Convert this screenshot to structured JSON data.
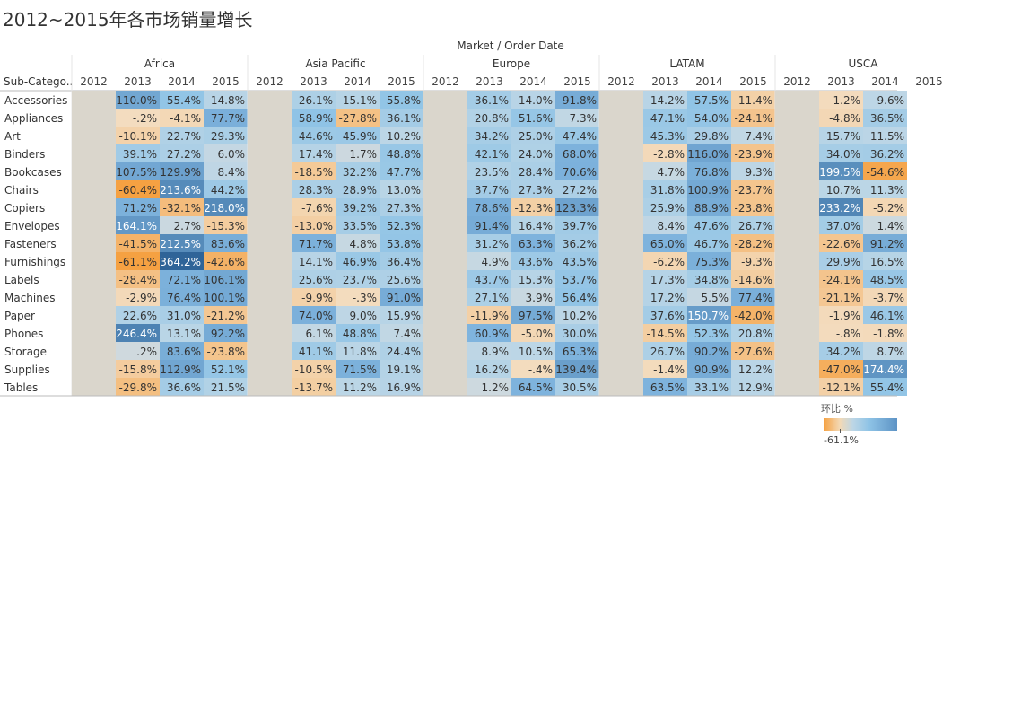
{
  "title": "2012~2015年各市场销量增长",
  "header": {
    "columns_title": "Market / Order Date",
    "row_title": "Sub-Catego.."
  },
  "legend": {
    "title": "环比 %",
    "min_label": "-61.1%"
  },
  "colors": {
    "neg": "#f5a142",
    "neutral": "#dad6cc",
    "pos_light": "#bcd6e6",
    "pos_mid": "#8ec3e6",
    "pos_dark": "#2f6498",
    "blank": "#dad6cc"
  },
  "chart_data": {
    "type": "heatmap",
    "measure": "环比 %",
    "column_header": "Market / Order Date",
    "markets": [
      "Africa",
      "Asia Pacific",
      "Europe",
      "LATAM",
      "USCA"
    ],
    "years": [
      "2012",
      "2013",
      "2014",
      "2015"
    ],
    "rows": [
      "Accessories",
      "Appliances",
      "Art",
      "Binders",
      "Bookcases",
      "Chairs",
      "Copiers",
      "Envelopes",
      "Fasteners",
      "Furnishings",
      "Labels",
      "Machines",
      "Paper",
      "Phones",
      "Storage",
      "Supplies",
      "Tables"
    ],
    "values": {
      "Africa": [
        [
          null,
          "110.0%",
          "55.4%",
          "14.8%"
        ],
        [
          null,
          "-.2%",
          "-4.1%",
          "77.7%"
        ],
        [
          null,
          "-10.1%",
          "22.7%",
          "29.3%"
        ],
        [
          null,
          "39.1%",
          "27.2%",
          "6.0%"
        ],
        [
          null,
          "107.5%",
          "129.9%",
          "8.4%"
        ],
        [
          null,
          "-60.4%",
          "213.6%",
          "44.2%"
        ],
        [
          null,
          "71.2%",
          "-32.1%",
          "218.0%"
        ],
        [
          null,
          "164.1%",
          "2.7%",
          "-15.3%"
        ],
        [
          null,
          "-41.5%",
          "212.5%",
          "83.6%"
        ],
        [
          null,
          "-61.1%",
          "364.2%",
          "-42.6%"
        ],
        [
          null,
          "-28.4%",
          "72.1%",
          "106.1%"
        ],
        [
          null,
          "-2.9%",
          "76.4%",
          "100.1%"
        ],
        [
          null,
          "22.6%",
          "31.0%",
          "-21.2%"
        ],
        [
          null,
          "246.4%",
          "13.1%",
          "92.2%"
        ],
        [
          null,
          ".2%",
          "83.6%",
          "-23.8%"
        ],
        [
          null,
          "-15.8%",
          "112.9%",
          "52.1%"
        ],
        [
          null,
          "-29.8%",
          "36.6%",
          "21.5%"
        ]
      ],
      "Asia Pacific": [
        [
          null,
          "26.1%",
          "15.1%",
          "55.8%"
        ],
        [
          null,
          "58.9%",
          "-27.8%",
          "36.1%"
        ],
        [
          null,
          "44.6%",
          "45.9%",
          "10.2%"
        ],
        [
          null,
          "17.4%",
          "1.7%",
          "48.8%"
        ],
        [
          null,
          "-18.5%",
          "32.2%",
          "47.7%"
        ],
        [
          null,
          "28.3%",
          "28.9%",
          "13.0%"
        ],
        [
          null,
          "-7.6%",
          "39.2%",
          "27.3%"
        ],
        [
          null,
          "-13.0%",
          "33.5%",
          "52.3%"
        ],
        [
          null,
          "71.7%",
          "4.8%",
          "53.8%"
        ],
        [
          null,
          "14.1%",
          "46.9%",
          "36.4%"
        ],
        [
          null,
          "25.6%",
          "23.7%",
          "25.6%"
        ],
        [
          null,
          "-9.9%",
          "-.3%",
          "91.0%"
        ],
        [
          null,
          "74.0%",
          "9.0%",
          "15.9%"
        ],
        [
          null,
          "6.1%",
          "48.8%",
          "7.4%"
        ],
        [
          null,
          "41.1%",
          "11.8%",
          "24.4%"
        ],
        [
          null,
          "-10.5%",
          "71.5%",
          "19.1%"
        ],
        [
          null,
          "-13.7%",
          "11.2%",
          "16.9%"
        ]
      ],
      "Europe": [
        [
          null,
          "36.1%",
          "14.0%",
          "91.8%"
        ],
        [
          null,
          "20.8%",
          "51.6%",
          "7.3%"
        ],
        [
          null,
          "34.2%",
          "25.0%",
          "47.4%"
        ],
        [
          null,
          "42.1%",
          "24.0%",
          "68.0%"
        ],
        [
          null,
          "23.5%",
          "28.4%",
          "70.6%"
        ],
        [
          null,
          "37.7%",
          "27.3%",
          "27.2%"
        ],
        [
          null,
          "78.6%",
          "-12.3%",
          "123.3%"
        ],
        [
          null,
          "91.4%",
          "16.4%",
          "39.7%"
        ],
        [
          null,
          "31.2%",
          "63.3%",
          "36.2%"
        ],
        [
          null,
          "4.9%",
          "43.6%",
          "43.5%"
        ],
        [
          null,
          "43.7%",
          "15.3%",
          "53.7%"
        ],
        [
          null,
          "27.1%",
          "3.9%",
          "56.4%"
        ],
        [
          null,
          "-11.9%",
          "97.5%",
          "10.2%"
        ],
        [
          null,
          "60.9%",
          "-5.0%",
          "30.0%"
        ],
        [
          null,
          "8.9%",
          "10.5%",
          "65.3%"
        ],
        [
          null,
          "16.2%",
          "-.4%",
          "139.4%"
        ],
        [
          null,
          "1.2%",
          "64.5%",
          "30.5%"
        ]
      ],
      "LATAM": [
        [
          null,
          "14.2%",
          "57.5%",
          "-11.4%"
        ],
        [
          null,
          "47.1%",
          "54.0%",
          "-24.1%"
        ],
        [
          null,
          "45.3%",
          "29.8%",
          "7.4%"
        ],
        [
          null,
          "-2.8%",
          "116.0%",
          "-23.9%"
        ],
        [
          null,
          "4.7%",
          "76.8%",
          "9.3%"
        ],
        [
          null,
          "31.8%",
          "100.9%",
          "-23.7%"
        ],
        [
          null,
          "25.9%",
          "88.9%",
          "-23.8%"
        ],
        [
          null,
          "8.4%",
          "47.6%",
          "26.7%"
        ],
        [
          null,
          "65.0%",
          "46.7%",
          "-28.2%"
        ],
        [
          null,
          "-6.2%",
          "75.3%",
          "-9.3%"
        ],
        [
          null,
          "17.3%",
          "34.8%",
          "-14.6%"
        ],
        [
          null,
          "17.2%",
          "5.5%",
          "77.4%"
        ],
        [
          null,
          "37.6%",
          "150.7%",
          "-42.0%"
        ],
        [
          null,
          "-14.5%",
          "52.3%",
          "20.8%"
        ],
        [
          null,
          "26.7%",
          "90.2%",
          "-27.6%"
        ],
        [
          null,
          "-1.4%",
          "90.9%",
          "12.2%"
        ],
        [
          null,
          "63.5%",
          "33.1%",
          "12.9%"
        ]
      ],
      "USCA": [
        [
          null,
          "-1.2%",
          "9.6%",
          null
        ],
        [
          null,
          "-4.8%",
          "36.5%",
          null
        ],
        [
          null,
          "15.7%",
          "11.5%",
          null
        ],
        [
          null,
          "34.0%",
          "36.2%",
          null
        ],
        [
          null,
          "199.5%",
          "-54.6%",
          null
        ],
        [
          null,
          "10.7%",
          "11.3%",
          null
        ],
        [
          null,
          "233.2%",
          "-5.2%",
          null
        ],
        [
          null,
          "37.0%",
          "1.4%",
          null
        ],
        [
          null,
          "-22.6%",
          "91.2%",
          null
        ],
        [
          null,
          "29.9%",
          "16.5%",
          null
        ],
        [
          null,
          "-24.1%",
          "48.5%",
          null
        ],
        [
          null,
          "-21.1%",
          "-3.7%",
          null
        ],
        [
          null,
          "-1.9%",
          "46.1%",
          null
        ],
        [
          null,
          "-.8%",
          "-1.8%",
          null
        ],
        [
          null,
          "34.2%",
          "8.7%",
          null
        ],
        [
          null,
          "-47.0%",
          "174.4%",
          null
        ],
        [
          null,
          "-12.1%",
          "55.4%",
          null
        ]
      ]
    }
  }
}
